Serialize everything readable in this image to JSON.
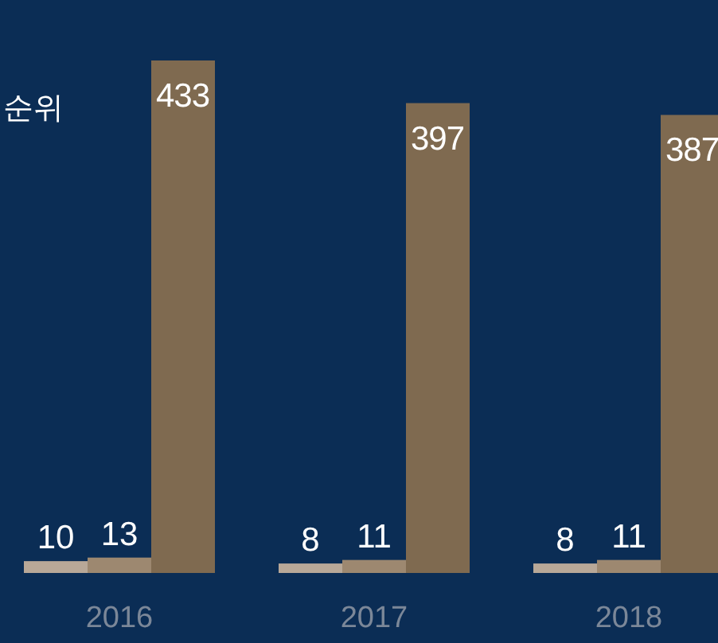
{
  "chart_data": {
    "type": "bar",
    "title": "순위",
    "data_labels": true,
    "categories": [
      "2016",
      "2017",
      "2018"
    ],
    "series": [
      {
        "color": "#b8a898",
        "values": [
          10,
          8,
          8
        ]
      },
      {
        "color": "#9d8870",
        "values": [
          13,
          11,
          11
        ]
      },
      {
        "color": "#7f6a50",
        "values": [
          433,
          397,
          387
        ]
      }
    ]
  }
}
